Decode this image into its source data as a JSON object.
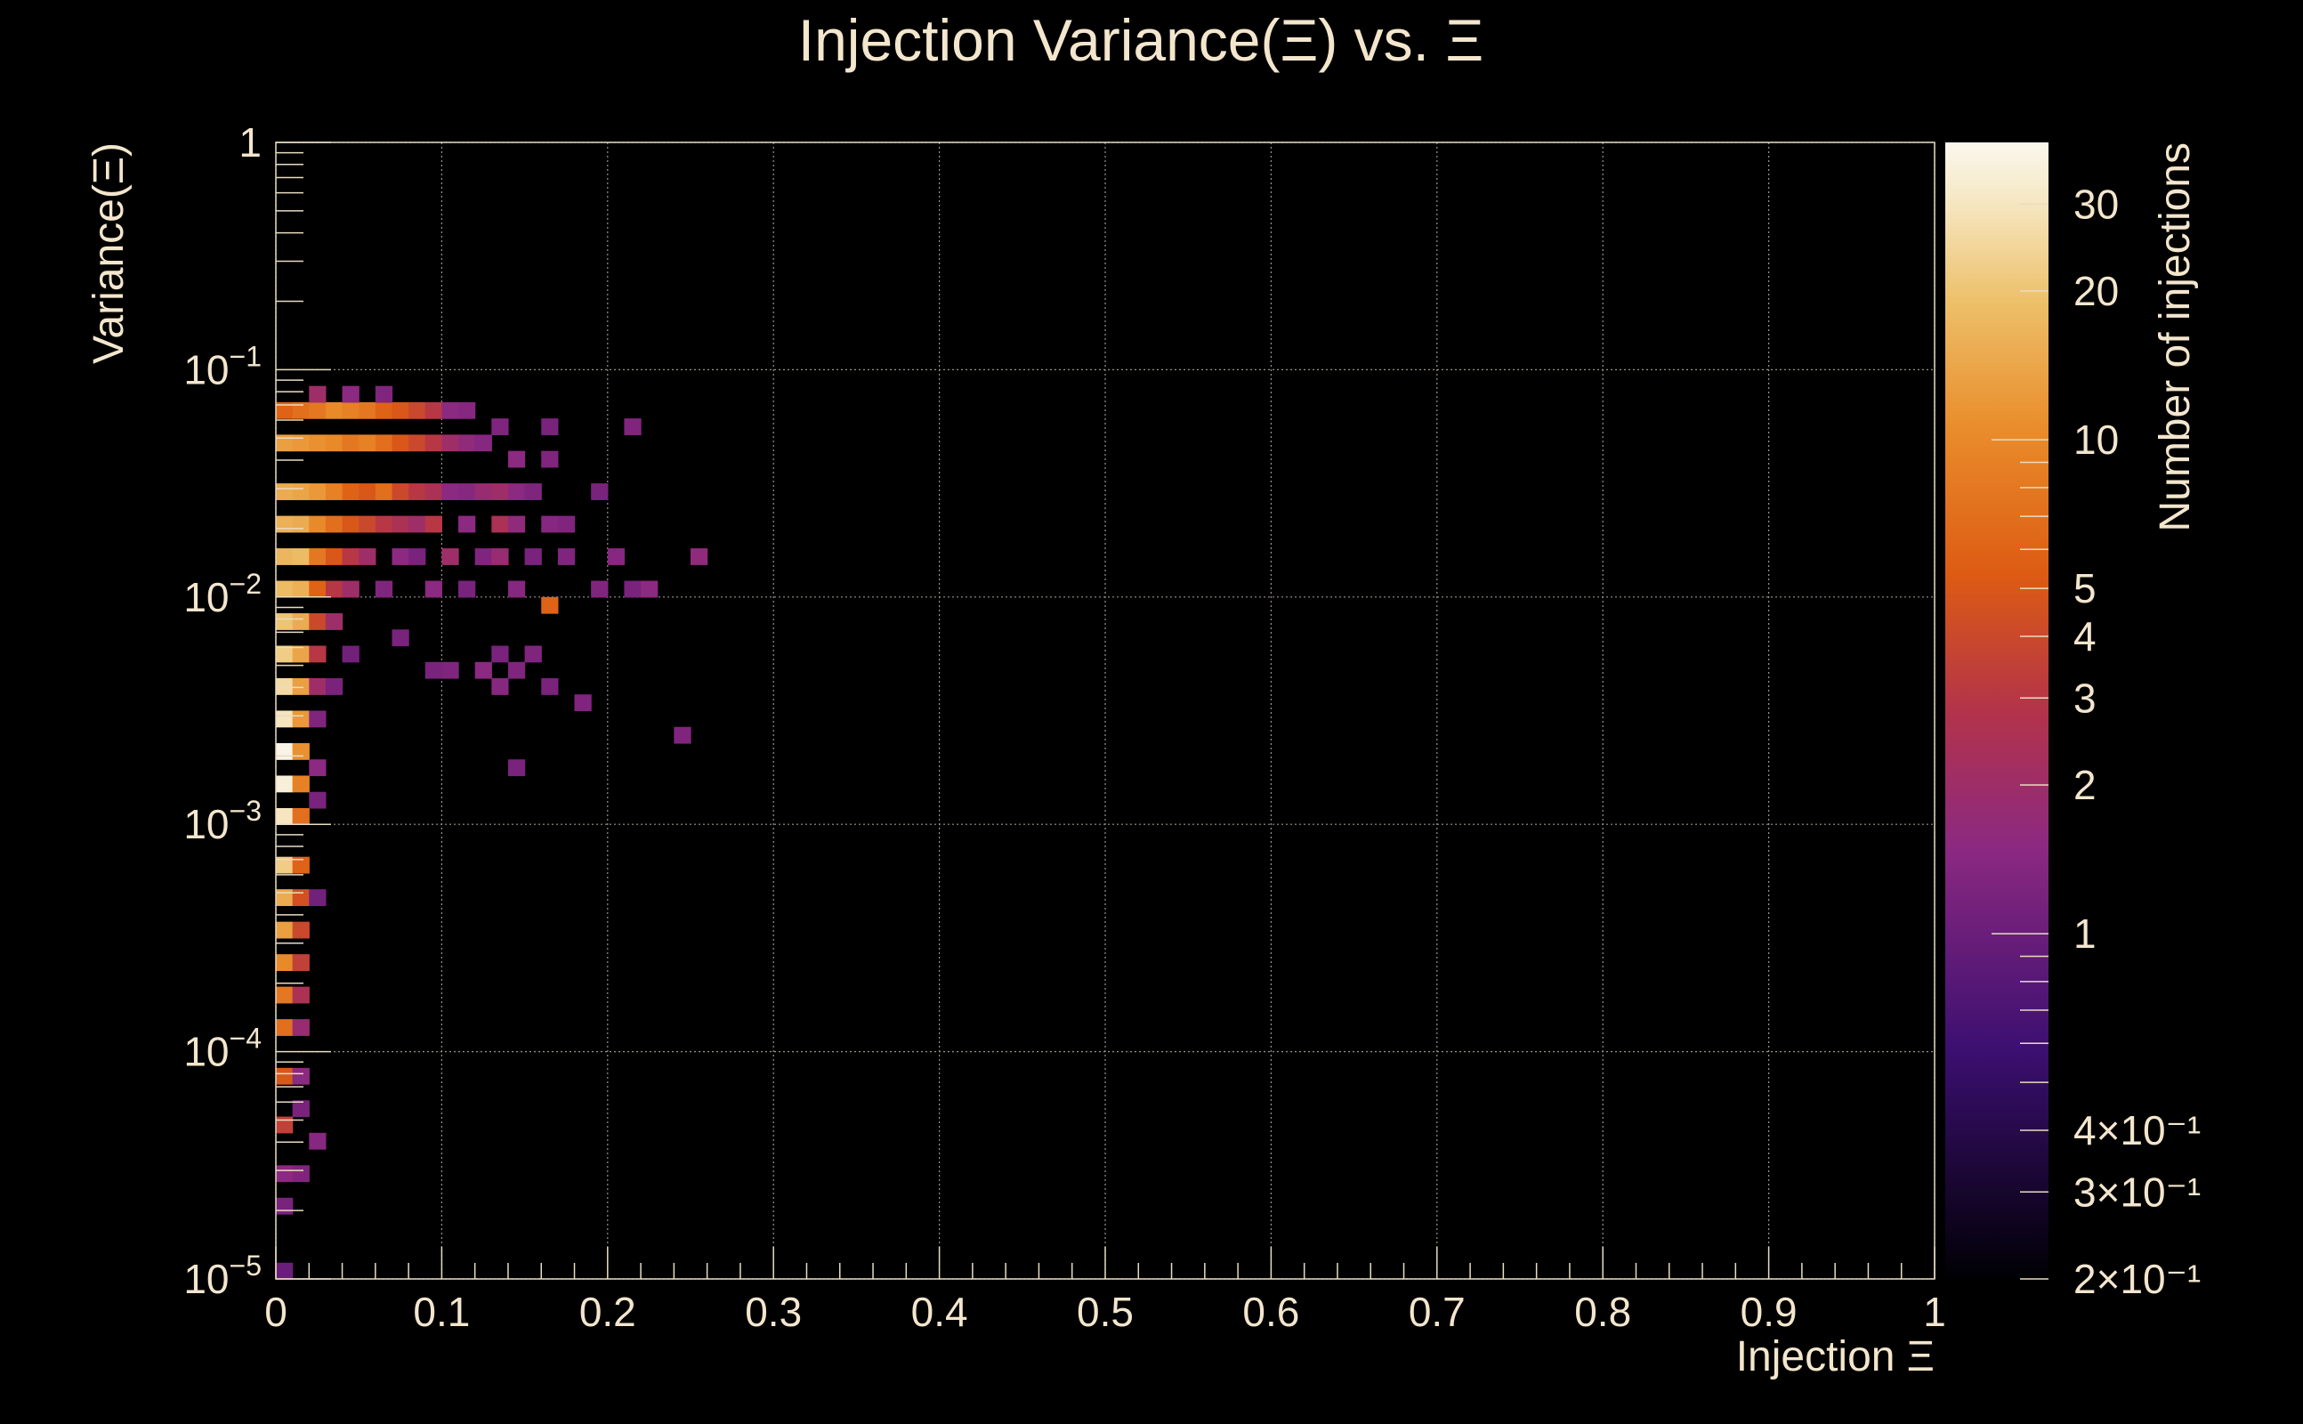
{
  "chart_data": {
    "type": "heatmap",
    "title": "Injection Variance(Ξ) vs. Ξ",
    "xlabel": "Injection Ξ",
    "ylabel": "Variance(Ξ)",
    "zlabel": "Number of injections",
    "xlim": [
      0,
      1
    ],
    "ylim": [
      1e-05,
      1
    ],
    "y_log": true,
    "zlim": [
      0.2,
      40
    ],
    "z_log": true,
    "grid": true,
    "x_ticks": [
      "0",
      "0.1",
      "0.2",
      "0.3",
      "0.4",
      "0.5",
      "0.6",
      "0.7",
      "0.8",
      "0.9",
      "1"
    ],
    "y_ticks": [
      {
        "value": 1,
        "base": "1",
        "exp": ""
      },
      {
        "value": 0.1,
        "base": "10",
        "exp": "−1"
      },
      {
        "value": 0.01,
        "base": "10",
        "exp": "−2"
      },
      {
        "value": 0.001,
        "base": "10",
        "exp": "−3"
      },
      {
        "value": 0.0001,
        "base": "10",
        "exp": "−4"
      },
      {
        "value": 1e-05,
        "base": "10",
        "exp": "−5"
      }
    ],
    "z_ticks": [
      {
        "value": 30,
        "text": "30"
      },
      {
        "value": 20,
        "text": "20"
      },
      {
        "value": 10,
        "text": "10"
      },
      {
        "value": 5,
        "text": "5"
      },
      {
        "value": 4,
        "text": "4"
      },
      {
        "value": 3,
        "text": "3"
      },
      {
        "value": 2,
        "text": "2"
      },
      {
        "value": 1,
        "text": "1"
      },
      {
        "value": 0.4,
        "text": "4×10⁻¹"
      },
      {
        "value": 0.3,
        "text": "3×10⁻¹"
      },
      {
        "value": 0.2,
        "text": "2×10⁻¹"
      }
    ],
    "colorscale": [
      {
        "t": 0.0,
        "color": "#000004"
      },
      {
        "t": 0.2,
        "color": "#3b0f70"
      },
      {
        "t": 0.38,
        "color": "#8c2981"
      },
      {
        "t": 0.5,
        "color": "#b3334a"
      },
      {
        "t": 0.62,
        "color": "#dd5b13"
      },
      {
        "t": 0.75,
        "color": "#e98d2c"
      },
      {
        "t": 0.86,
        "color": "#edc06a"
      },
      {
        "t": 0.95,
        "color": "#f6e8c4"
      },
      {
        "t": 1.0,
        "color": "#fbf7ee"
      }
    ],
    "bins": {
      "x_edges": [
        0,
        0.01,
        0.02,
        0.03,
        0.04,
        0.05,
        0.06,
        0.07,
        0.08,
        0.09,
        0.1,
        0.11,
        0.12,
        0.13,
        0.14,
        0.15,
        0.16,
        0.17,
        0.18,
        0.19,
        0.2,
        0.21,
        0.22,
        0.23,
        0.24,
        0.25,
        0.26
      ],
      "y_decade_bins": 14,
      "cells": [
        [
          0.005,
          1e-05,
          1
        ],
        [
          0.005,
          2e-05,
          1.2
        ],
        [
          0.005,
          3e-05,
          1.5
        ],
        [
          0.015,
          3e-05,
          1.3
        ],
        [
          0.025,
          3.8e-05,
          1.4
        ],
        [
          0.005,
          5e-05,
          3.5
        ],
        [
          0.015,
          6e-05,
          1.2
        ],
        [
          0.005,
          8e-05,
          5
        ],
        [
          0.015,
          8e-05,
          1.5
        ],
        [
          0.005,
          0.00012,
          7
        ],
        [
          0.015,
          0.00012,
          1.8
        ],
        [
          0.005,
          0.00018,
          8
        ],
        [
          0.015,
          0.00018,
          2.5
        ],
        [
          0.005,
          0.00025,
          10
        ],
        [
          0.015,
          0.00025,
          3.5
        ],
        [
          0.005,
          0.00035,
          13
        ],
        [
          0.015,
          0.00035,
          4
        ],
        [
          0.005,
          0.0005,
          15
        ],
        [
          0.015,
          0.0005,
          4.5
        ],
        [
          0.025,
          0.0005,
          1.1
        ],
        [
          0.005,
          0.0007,
          22
        ],
        [
          0.015,
          0.0007,
          6
        ],
        [
          0.005,
          0.001,
          30
        ],
        [
          0.015,
          0.001,
          7
        ],
        [
          0.025,
          0.0012,
          1.2
        ],
        [
          0.005,
          0.0014,
          35
        ],
        [
          0.015,
          0.0014,
          9
        ],
        [
          0.005,
          0.002,
          38
        ],
        [
          0.015,
          0.002,
          11
        ],
        [
          0.025,
          0.0019,
          1.5
        ],
        [
          0.005,
          0.0028,
          30
        ],
        [
          0.015,
          0.0028,
          12
        ],
        [
          0.025,
          0.0028,
          1.3
        ],
        [
          0.005,
          0.004,
          26
        ],
        [
          0.015,
          0.004,
          13
        ],
        [
          0.025,
          0.004,
          2
        ],
        [
          0.035,
          0.004,
          1.2
        ],
        [
          0.005,
          0.0055,
          22
        ],
        [
          0.015,
          0.0055,
          14
        ],
        [
          0.025,
          0.0055,
          3
        ],
        [
          0.045,
          0.0055,
          1.1
        ],
        [
          0.005,
          0.0078,
          20
        ],
        [
          0.015,
          0.0078,
          15
        ],
        [
          0.025,
          0.0078,
          4
        ],
        [
          0.035,
          0.0078,
          2
        ],
        [
          0.005,
          0.011,
          18
        ],
        [
          0.015,
          0.011,
          16
        ],
        [
          0.025,
          0.011,
          6
        ],
        [
          0.035,
          0.011,
          3
        ],
        [
          0.045,
          0.011,
          2
        ],
        [
          0.065,
          0.011,
          1.3
        ],
        [
          0.095,
          0.011,
          1.5
        ],
        [
          0.115,
          0.011,
          1.2
        ],
        [
          0.145,
          0.011,
          1.4
        ],
        [
          0.165,
          0.0095,
          6
        ],
        [
          0.195,
          0.011,
          1.3
        ],
        [
          0.215,
          0.011,
          1.2
        ],
        [
          0.225,
          0.011,
          1.5
        ],
        [
          0.005,
          0.016,
          17
        ],
        [
          0.015,
          0.016,
          18
        ],
        [
          0.025,
          0.016,
          8
        ],
        [
          0.035,
          0.016,
          5
        ],
        [
          0.045,
          0.016,
          3
        ],
        [
          0.055,
          0.016,
          2
        ],
        [
          0.075,
          0.016,
          1.5
        ],
        [
          0.085,
          0.016,
          1.2
        ],
        [
          0.105,
          0.016,
          2
        ],
        [
          0.125,
          0.016,
          1.3
        ],
        [
          0.135,
          0.016,
          1.8
        ],
        [
          0.155,
          0.016,
          1.2
        ],
        [
          0.175,
          0.014,
          1.3
        ],
        [
          0.205,
          0.014,
          1.4
        ],
        [
          0.255,
          0.014,
          1.6
        ],
        [
          0.005,
          0.022,
          16
        ],
        [
          0.015,
          0.022,
          15
        ],
        [
          0.025,
          0.022,
          10
        ],
        [
          0.035,
          0.022,
          7
        ],
        [
          0.045,
          0.022,
          5
        ],
        [
          0.055,
          0.022,
          4
        ],
        [
          0.065,
          0.022,
          3
        ],
        [
          0.075,
          0.022,
          2.5
        ],
        [
          0.085,
          0.022,
          2
        ],
        [
          0.095,
          0.022,
          3
        ],
        [
          0.115,
          0.022,
          1.5
        ],
        [
          0.135,
          0.022,
          2.5
        ],
        [
          0.145,
          0.022,
          1.6
        ],
        [
          0.165,
          0.022,
          1.4
        ],
        [
          0.175,
          0.022,
          1.3
        ],
        [
          0.005,
          0.031,
          15
        ],
        [
          0.015,
          0.031,
          14
        ],
        [
          0.025,
          0.031,
          12
        ],
        [
          0.035,
          0.031,
          9
        ],
        [
          0.045,
          0.031,
          6
        ],
        [
          0.055,
          0.031,
          5
        ],
        [
          0.065,
          0.031,
          7
        ],
        [
          0.075,
          0.031,
          4
        ],
        [
          0.085,
          0.031,
          3
        ],
        [
          0.095,
          0.031,
          2.5
        ],
        [
          0.105,
          0.031,
          1.5
        ],
        [
          0.115,
          0.031,
          1.4
        ],
        [
          0.125,
          0.031,
          1.8
        ],
        [
          0.135,
          0.031,
          2
        ],
        [
          0.145,
          0.031,
          1.5
        ],
        [
          0.155,
          0.031,
          1.3
        ],
        [
          0.195,
          0.03,
          1.2
        ],
        [
          0.005,
          0.044,
          13
        ],
        [
          0.015,
          0.044,
          12
        ],
        [
          0.025,
          0.044,
          11
        ],
        [
          0.035,
          0.044,
          10
        ],
        [
          0.045,
          0.044,
          8
        ],
        [
          0.055,
          0.044,
          9
        ],
        [
          0.065,
          0.044,
          7
        ],
        [
          0.075,
          0.044,
          5
        ],
        [
          0.085,
          0.044,
          4
        ],
        [
          0.095,
          0.044,
          3
        ],
        [
          0.105,
          0.044,
          2
        ],
        [
          0.115,
          0.044,
          1.6
        ],
        [
          0.125,
          0.044,
          1.4
        ],
        [
          0.145,
          0.04,
          1.5
        ],
        [
          0.165,
          0.04,
          1.3
        ],
        [
          0.005,
          0.062,
          6
        ],
        [
          0.015,
          0.062,
          7
        ],
        [
          0.025,
          0.062,
          8
        ],
        [
          0.035,
          0.062,
          10
        ],
        [
          0.045,
          0.062,
          9
        ],
        [
          0.055,
          0.062,
          8
        ],
        [
          0.065,
          0.062,
          6
        ],
        [
          0.075,
          0.062,
          5
        ],
        [
          0.085,
          0.062,
          4
        ],
        [
          0.095,
          0.062,
          3
        ],
        [
          0.105,
          0.062,
          1.5
        ],
        [
          0.115,
          0.062,
          1.4
        ],
        [
          0.135,
          0.055,
          1.3
        ],
        [
          0.165,
          0.055,
          1.2
        ],
        [
          0.215,
          0.06,
          1.3
        ],
        [
          0.025,
          0.075,
          2
        ],
        [
          0.045,
          0.075,
          1.5
        ],
        [
          0.065,
          0.075,
          1.3
        ],
        [
          0.245,
          0.0025,
          1.3
        ],
        [
          0.145,
          0.0018,
          1.2
        ],
        [
          0.105,
          0.0045,
          1.3
        ],
        [
          0.125,
          0.0045,
          1.5
        ],
        [
          0.145,
          0.0045,
          1.3
        ],
        [
          0.135,
          0.004,
          1.4
        ],
        [
          0.165,
          0.0038,
          1.2
        ],
        [
          0.185,
          0.0036,
          1.3
        ],
        [
          0.095,
          0.005,
          1.2
        ],
        [
          0.075,
          0.0065,
          1.2
        ],
        [
          0.135,
          0.0058,
          1.2
        ],
        [
          0.155,
          0.0052,
          1.3
        ]
      ]
    }
  }
}
